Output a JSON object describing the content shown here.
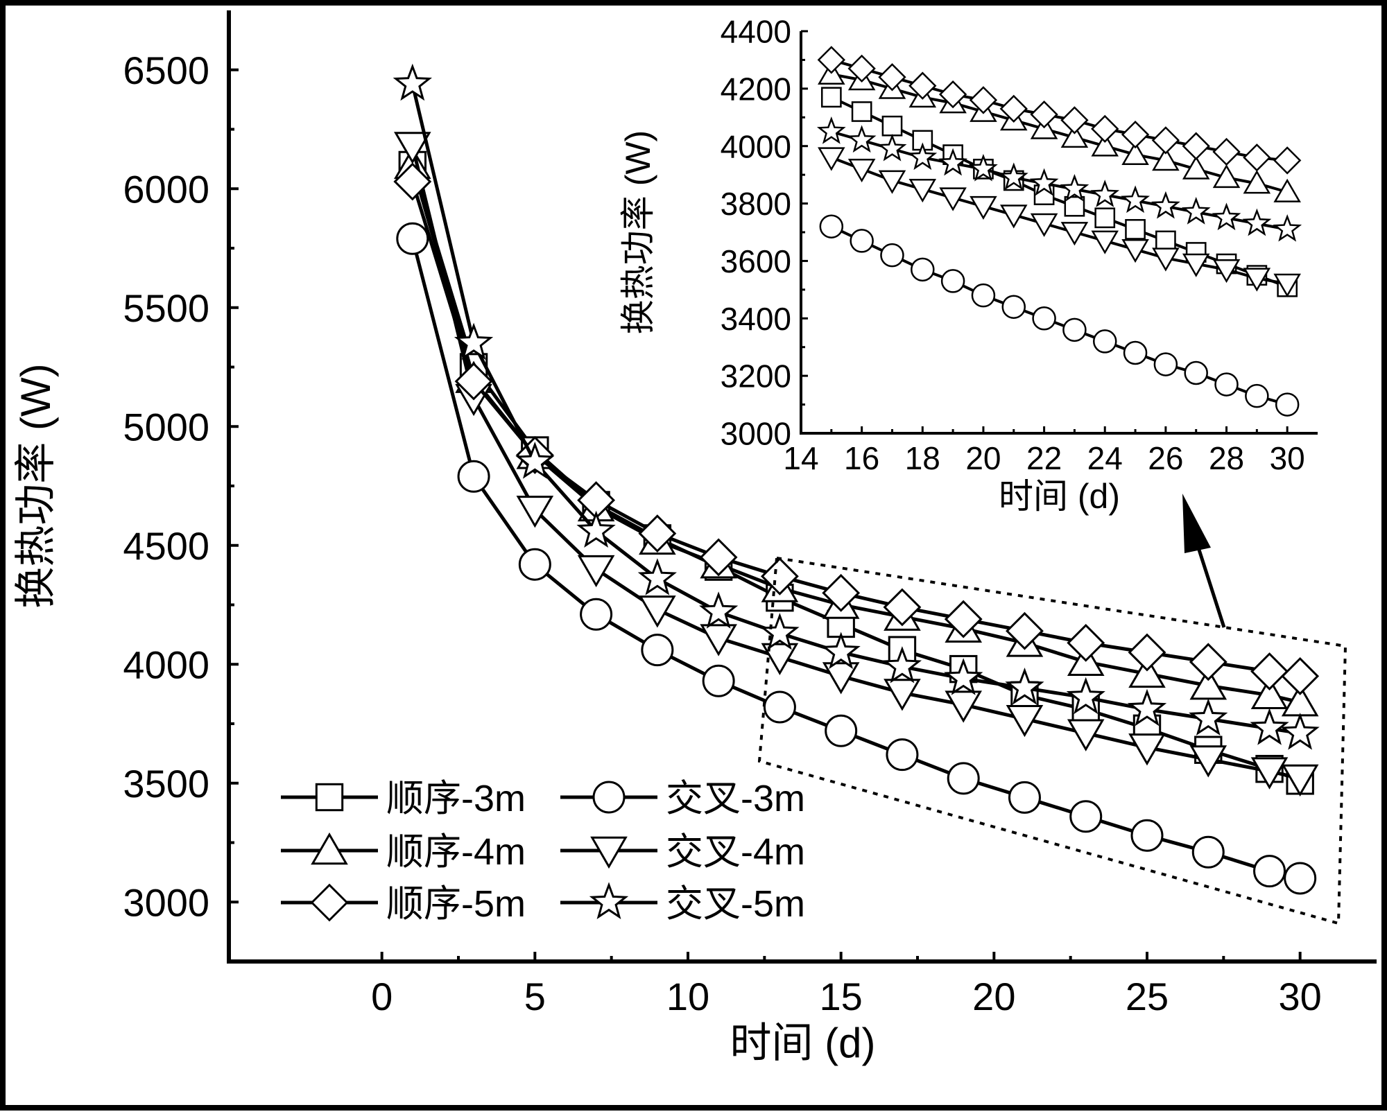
{
  "chart_data": [
    {
      "type": "line",
      "xlabel": "时间 (d)",
      "ylabel": "换热功率 (W)",
      "xlim": [
        -5,
        32.5
      ],
      "ylim": [
        2750,
        6750
      ],
      "xticks": [
        "0",
        "5",
        "10",
        "15",
        "20",
        "25",
        "30"
      ],
      "yticks": [
        "3000",
        "3500",
        "4000",
        "4500",
        "5000",
        "5500",
        "6000",
        "6500"
      ],
      "grid": false,
      "legend_position": "bottom-left",
      "x": [
        1,
        3,
        5,
        7,
        9,
        11,
        13,
        15,
        17,
        19,
        21,
        23,
        25,
        27,
        29,
        30
      ],
      "series": [
        {
          "name": "顺序-3m",
          "marker": "square",
          "values": [
            6100,
            5250,
            4900,
            4670,
            4530,
            4410,
            4280,
            4170,
            4060,
            3980,
            3870,
            3810,
            3730,
            3640,
            3560,
            3510
          ]
        },
        {
          "name": "交叉-3m",
          "marker": "circle",
          "values": [
            5790,
            4790,
            4420,
            4210,
            4060,
            3930,
            3820,
            3720,
            3620,
            3520,
            3440,
            3360,
            3280,
            3210,
            3130,
            3100
          ]
        },
        {
          "name": "顺序-4m",
          "marker": "triangle-up",
          "values": [
            6100,
            5200,
            4880,
            4660,
            4520,
            4420,
            4320,
            4250,
            4200,
            4150,
            4090,
            4010,
            3960,
            3910,
            3870,
            3840
          ]
        },
        {
          "name": "交叉-4m",
          "marker": "triangle-down",
          "values": [
            6180,
            5120,
            4650,
            4400,
            4230,
            4110,
            4030,
            3950,
            3880,
            3830,
            3770,
            3710,
            3650,
            3600,
            3550,
            3520
          ]
        },
        {
          "name": "顺序-5m",
          "marker": "diamond",
          "values": [
            6030,
            5190,
            4880,
            4690,
            4550,
            4450,
            4370,
            4300,
            4240,
            4190,
            4140,
            4090,
            4050,
            4010,
            3970,
            3950
          ]
        },
        {
          "name": "交叉-5m",
          "marker": "star",
          "values": [
            6440,
            5350,
            4850,
            4560,
            4360,
            4220,
            4130,
            4050,
            3990,
            3940,
            3900,
            3860,
            3810,
            3770,
            3730,
            3710
          ]
        }
      ]
    },
    {
      "type": "line",
      "xlabel": "时间 (d)",
      "ylabel": "换热功率 (W)",
      "xlim": [
        14,
        31
      ],
      "ylim": [
        3000,
        4400
      ],
      "xticks": [
        "14",
        "16",
        "18",
        "20",
        "22",
        "24",
        "26",
        "28",
        "30"
      ],
      "yticks": [
        "3000",
        "3200",
        "3400",
        "3600",
        "3800",
        "4000",
        "4200",
        "4400"
      ],
      "grid": false,
      "x": [
        15,
        16,
        17,
        18,
        19,
        20,
        21,
        22,
        23,
        24,
        25,
        26,
        27,
        28,
        29,
        30
      ],
      "series": [
        {
          "name": "顺序-3m",
          "marker": "square",
          "values": [
            4170,
            4120,
            4070,
            4020,
            3970,
            3920,
            3880,
            3830,
            3790,
            3750,
            3710,
            3670,
            3630,
            3590,
            3550,
            3510
          ]
        },
        {
          "name": "交叉-3m",
          "marker": "circle",
          "values": [
            3720,
            3670,
            3620,
            3570,
            3530,
            3480,
            3440,
            3400,
            3360,
            3320,
            3280,
            3240,
            3210,
            3170,
            3130,
            3100
          ]
        },
        {
          "name": "顺序-4m",
          "marker": "triangle-up",
          "values": [
            4250,
            4230,
            4200,
            4170,
            4150,
            4120,
            4090,
            4060,
            4030,
            4000,
            3970,
            3950,
            3920,
            3890,
            3870,
            3840
          ]
        },
        {
          "name": "交叉-4m",
          "marker": "triangle-down",
          "values": [
            3960,
            3920,
            3880,
            3850,
            3820,
            3790,
            3760,
            3730,
            3700,
            3670,
            3640,
            3610,
            3590,
            3570,
            3540,
            3520
          ]
        },
        {
          "name": "顺序-5m",
          "marker": "diamond",
          "values": [
            4300,
            4270,
            4240,
            4210,
            4180,
            4160,
            4130,
            4110,
            4090,
            4060,
            4040,
            4020,
            4000,
            3980,
            3960,
            3950
          ]
        },
        {
          "name": "交叉-5m",
          "marker": "star",
          "values": [
            4050,
            4020,
            3990,
            3960,
            3940,
            3920,
            3890,
            3870,
            3850,
            3830,
            3810,
            3790,
            3770,
            3750,
            3730,
            3710
          ]
        }
      ]
    }
  ]
}
